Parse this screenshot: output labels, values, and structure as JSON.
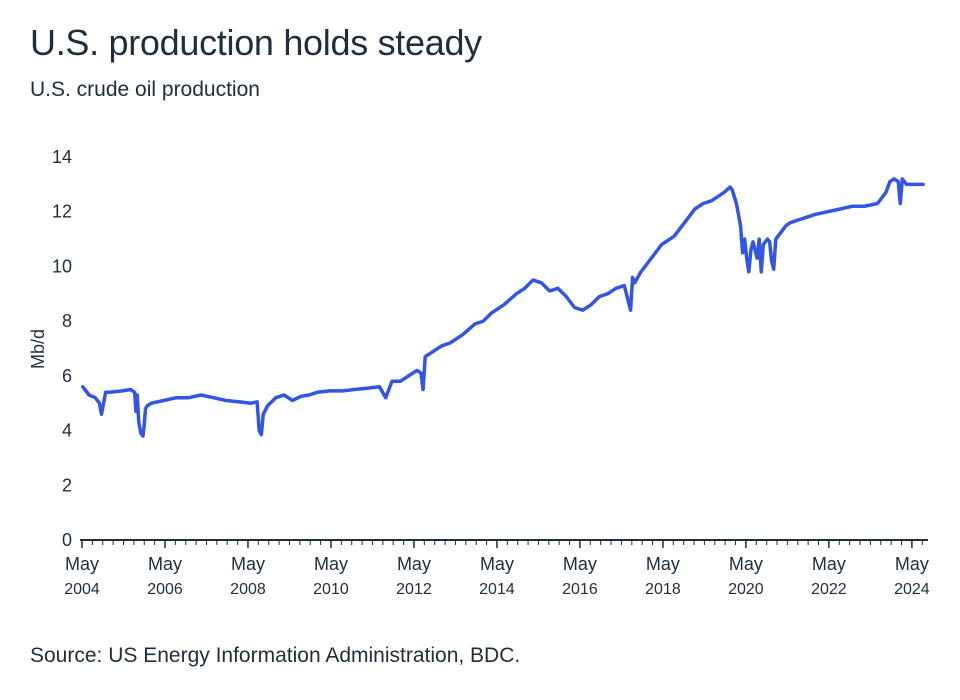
{
  "title": "U.S. production holds steady",
  "subtitle": "U.S. crude oil production",
  "source": "Source: US Energy Information Administration, BDC.",
  "chart_data": {
    "type": "line",
    "ylabel": "Mb/d",
    "ylim": [
      0,
      14
    ],
    "yticks": [
      "0",
      "2",
      "4",
      "6",
      "8",
      "10",
      "12",
      "14"
    ],
    "xlim": [
      2004.33,
      2024.67
    ],
    "xticks": [
      {
        "month": "May",
        "year": "2004"
      },
      {
        "month": "May",
        "year": "2006"
      },
      {
        "month": "May",
        "year": "2008"
      },
      {
        "month": "May",
        "year": "2010"
      },
      {
        "month": "May",
        "year": "2012"
      },
      {
        "month": "May",
        "year": "2014"
      },
      {
        "month": "May",
        "year": "2016"
      },
      {
        "month": "May",
        "year": "2018"
      },
      {
        "month": "May",
        "year": "2020"
      },
      {
        "month": "May",
        "year": "2022"
      },
      {
        "month": "May",
        "year": "2024"
      }
    ],
    "grid": false,
    "color": "#3355e6",
    "series": [
      {
        "x": [
          2004.35,
          2004.5,
          2004.65,
          2004.75,
          2004.8,
          2004.85,
          2004.9,
          2005.0,
          2005.3,
          2005.5,
          2005.6,
          2005.63,
          2005.66,
          2005.7,
          2005.75,
          2005.8,
          2005.83,
          2005.86,
          2005.9,
          2006.0,
          2006.3,
          2006.6,
          2006.9,
          2007.2,
          2007.5,
          2007.8,
          2008.1,
          2008.4,
          2008.55,
          2008.6,
          2008.65,
          2008.7,
          2008.8,
          2009.0,
          2009.2,
          2009.4,
          2009.6,
          2009.8,
          2010.0,
          2010.3,
          2010.6,
          2010.9,
          2011.2,
          2011.5,
          2011.65,
          2011.8,
          2012.0,
          2012.2,
          2012.4,
          2012.5,
          2012.55,
          2012.6,
          2012.8,
          2013.0,
          2013.2,
          2013.5,
          2013.8,
          2014.0,
          2014.2,
          2014.5,
          2014.8,
          2015.0,
          2015.2,
          2015.4,
          2015.6,
          2015.8,
          2016.0,
          2016.2,
          2016.4,
          2016.6,
          2016.8,
          2017.0,
          2017.2,
          2017.4,
          2017.55,
          2017.6,
          2017.65,
          2017.8,
          2018.0,
          2018.3,
          2018.6,
          2018.9,
          2019.1,
          2019.3,
          2019.5,
          2019.7,
          2019.8,
          2019.95,
          2020.0,
          2020.1,
          2020.2,
          2020.25,
          2020.3,
          2020.35,
          2020.4,
          2020.45,
          2020.5,
          2020.6,
          2020.65,
          2020.7,
          2020.75,
          2020.85,
          2020.9,
          2020.95,
          2021.0,
          2021.05,
          2021.1,
          2021.2,
          2021.3,
          2021.4,
          2021.6,
          2021.8,
          2022.0,
          2022.3,
          2022.6,
          2022.9,
          2023.2,
          2023.5,
          2023.7,
          2023.8,
          2023.9,
          2024.0,
          2024.05,
          2024.1,
          2024.2,
          2024.4,
          2024.6
        ],
        "y": [
          5.6,
          5.3,
          5.2,
          5.0,
          4.6,
          5.0,
          5.4,
          5.4,
          5.45,
          5.5,
          5.4,
          4.7,
          5.3,
          4.3,
          3.9,
          3.8,
          4.2,
          4.8,
          4.9,
          5.0,
          5.1,
          5.2,
          5.2,
          5.3,
          5.2,
          5.1,
          5.05,
          5.0,
          5.05,
          4.0,
          3.85,
          4.6,
          4.9,
          5.2,
          5.3,
          5.1,
          5.25,
          5.3,
          5.4,
          5.45,
          5.45,
          5.5,
          5.55,
          5.6,
          5.2,
          5.8,
          5.8,
          6.0,
          6.2,
          6.1,
          5.5,
          6.7,
          6.9,
          7.1,
          7.2,
          7.5,
          7.9,
          8.0,
          8.3,
          8.6,
          9.0,
          9.2,
          9.5,
          9.4,
          9.1,
          9.2,
          8.9,
          8.5,
          8.4,
          8.6,
          8.9,
          9.0,
          9.2,
          9.3,
          8.4,
          9.6,
          9.4,
          9.8,
          10.2,
          10.8,
          11.1,
          11.7,
          12.1,
          12.3,
          12.4,
          12.6,
          12.7,
          12.9,
          12.8,
          12.3,
          11.5,
          10.5,
          11.0,
          10.3,
          9.8,
          10.6,
          10.9,
          10.3,
          11.0,
          9.8,
          10.8,
          11.0,
          10.9,
          10.2,
          9.9,
          11.0,
          11.1,
          11.3,
          11.5,
          11.6,
          11.7,
          11.8,
          11.9,
          12.0,
          12.1,
          12.2,
          12.2,
          12.3,
          12.7,
          13.1,
          13.2,
          13.1,
          12.3,
          13.2,
          13.0,
          13.0,
          13.0
        ]
      }
    ]
  }
}
